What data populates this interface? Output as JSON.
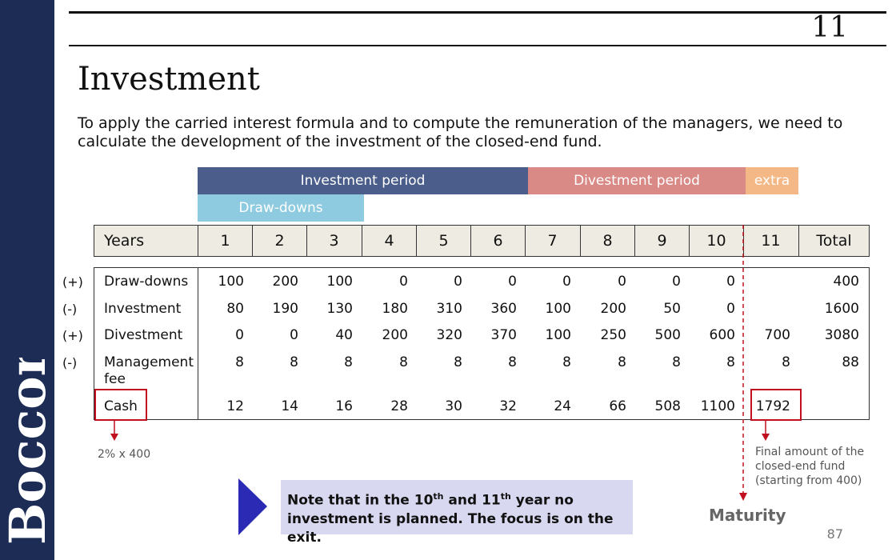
{
  "brand": {
    "text": "Bocconi",
    "bg": "#1c2c54"
  },
  "slide_number": "11",
  "title": "Investment",
  "intro": "To apply the carried interest formula and to compute the remuneration of the managers, we need to calculate the development of the investment of the closed-end fund.",
  "periods": {
    "investment": {
      "label": "Investment period",
      "color": "#4b5d8a"
    },
    "divestment": {
      "label": "Divestment period",
      "color": "#d98a86"
    },
    "extra": {
      "label": "extra",
      "color": "#f4b887"
    },
    "drawdowns": {
      "label": "Draw-downs",
      "color": "#8ecae0"
    }
  },
  "table": {
    "header": [
      "Years",
      "1",
      "2",
      "3",
      "4",
      "5",
      "6",
      "7",
      "8",
      "9",
      "10",
      "11",
      "Total"
    ],
    "rows": [
      {
        "sign": "(+)",
        "label": "Draw-downs",
        "values": [
          "100",
          "200",
          "100",
          "0",
          "0",
          "0",
          "0",
          "0",
          "0",
          "0",
          "",
          "400"
        ]
      },
      {
        "sign": "(-)",
        "label": "Investment",
        "values": [
          "80",
          "190",
          "130",
          "180",
          "310",
          "360",
          "100",
          "200",
          "50",
          "0",
          "",
          "1600"
        ]
      },
      {
        "sign": "(+)",
        "label": "Divestment",
        "values": [
          "0",
          "0",
          "40",
          "200",
          "320",
          "370",
          "100",
          "250",
          "500",
          "600",
          "700",
          "3080"
        ]
      },
      {
        "sign": "(-)",
        "label": "Management fee",
        "values": [
          "8",
          "8",
          "8",
          "8",
          "8",
          "8",
          "8",
          "8",
          "8",
          "8",
          "8",
          "88"
        ]
      },
      {
        "sign": "",
        "label": "Cash",
        "values": [
          "12",
          "14",
          "16",
          "28",
          "30",
          "32",
          "24",
          "66",
          "508",
          "1100",
          "1792",
          ""
        ]
      }
    ]
  },
  "annotations": {
    "fee_note": "2% x 400",
    "final_note": "Final amount of the closed-end fund (starting from 400)",
    "maturity": "Maturity"
  },
  "note": {
    "prefix": "Note that in the 10",
    "sup1": "th",
    "mid": " and 11",
    "sup2": "th",
    "suffix": " year no investment is planned. The focus is on the exit."
  },
  "page_number": "87"
}
